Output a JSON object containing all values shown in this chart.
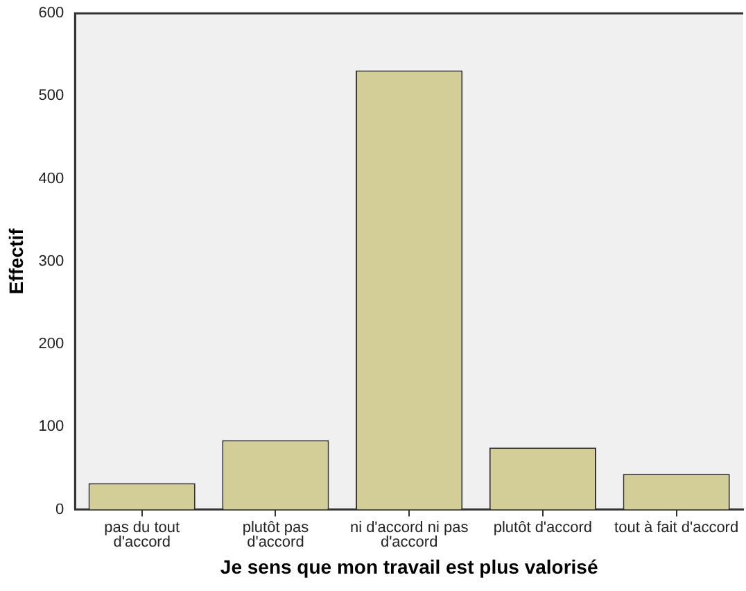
{
  "chart_data": {
    "type": "bar",
    "xlabel": "Je sens que mon travail est plus valorisé",
    "ylabel": "Effectif",
    "categories": [
      "pas du tout d'accord",
      "plutôt pas d'accord",
      "ni d'accord ni pas d'accord",
      "plutôt d'accord",
      "tout à fait d'accord"
    ],
    "values": [
      32,
      84,
      531,
      75,
      43
    ],
    "color": "#d3ce97",
    "ylim": [
      0,
      600
    ],
    "yticks": [
      0,
      100,
      200,
      300,
      400,
      500,
      600
    ],
    "grid": false,
    "legend": false
  }
}
